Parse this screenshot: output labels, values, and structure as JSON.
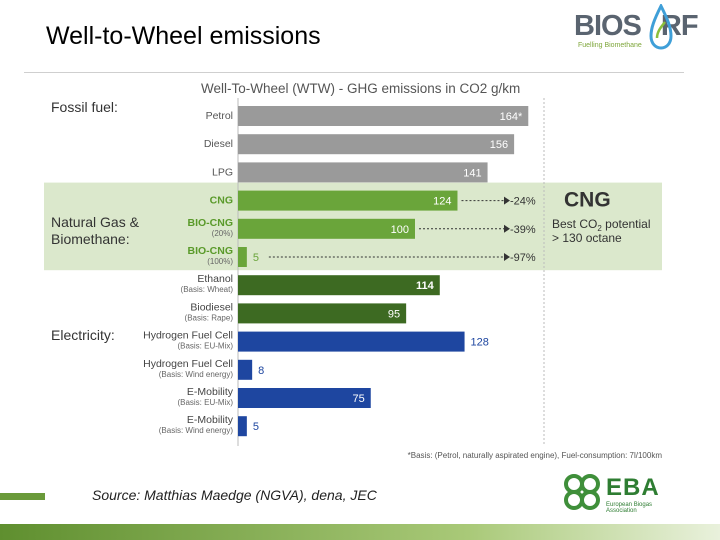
{
  "slide": {
    "title": "Well-to-Wheel emissions",
    "source": "Source: Matthias Maedge (NGVA), dena, JEC"
  },
  "logos": {
    "biosurf_a": "BIOS",
    "biosurf_b": "RF",
    "biosurf_sub": "Fuelling Biomethane",
    "eba": "EBA",
    "eba_sub": "European Biogas Association"
  },
  "colors": {
    "fossil": "#9a9a9a",
    "cng": "#6aa53a",
    "biofuel": "#3d6a22",
    "electric": "#1e46a0",
    "highlight_band": "#dbe8cc",
    "accent": "#6a9a3a"
  },
  "chart_data": {
    "type": "bar",
    "orientation": "horizontal",
    "title": "Well-To-Wheel (WTW) - GHG emissions in CO2 g/km",
    "groups": [
      {
        "name": "Fossil fuel:",
        "rows": [
          0,
          1,
          2
        ]
      },
      {
        "name": "Natural Gas & Biomethane:",
        "rows": [
          3,
          4,
          5
        ]
      },
      {
        "name": "Electricity:",
        "rows": [
          8,
          9,
          10,
          11
        ]
      }
    ],
    "rows": [
      {
        "label": "Petrol",
        "sub": "",
        "value": 164,
        "value_label": "164*",
        "color": "fossil",
        "label_color": "#555555",
        "inside": true
      },
      {
        "label": "Diesel",
        "sub": "",
        "value": 156,
        "value_label": "156",
        "color": "fossil",
        "label_color": "#555555",
        "inside": true
      },
      {
        "label": "LPG",
        "sub": "",
        "value": 141,
        "value_label": "141",
        "color": "fossil",
        "label_color": "#555555",
        "inside": true
      },
      {
        "label": "CNG",
        "sub": "",
        "value": 124,
        "value_label": "124",
        "color": "cng",
        "label_color": "#5a9a2a",
        "inside": true,
        "reduction": "-24%"
      },
      {
        "label": "BIO-CNG",
        "sub": "(20%)",
        "value": 100,
        "value_label": "100",
        "color": "cng",
        "label_color": "#5a9a2a",
        "inside": true,
        "reduction": "-39%"
      },
      {
        "label": "BIO-CNG",
        "sub": "(100%)",
        "value": 5,
        "value_label": "5",
        "color": "cng",
        "label_color": "#5a9a2a",
        "inside": false,
        "reduction": "-97%"
      },
      {
        "label": "Ethanol",
        "sub": "(Basis: Wheat)",
        "value": 114,
        "value_label": "114",
        "color": "biofuel",
        "label_color": "#444444",
        "inside": true
      },
      {
        "label": "Biodiesel",
        "sub": "(Basis: Rape)",
        "value": 95,
        "value_label": "95",
        "color": "biofuel",
        "label_color": "#444444",
        "inside": true
      },
      {
        "label": "Hydrogen Fuel Cell",
        "sub": "(Basis: EU-Mix)",
        "value": 128,
        "value_label": "128",
        "color": "electric",
        "label_color": "#444444",
        "inside": false
      },
      {
        "label": "Hydrogen Fuel Cell",
        "sub": "(Basis: Wind energy)",
        "value": 8,
        "value_label": "8",
        "color": "electric",
        "label_color": "#444444",
        "inside": false
      },
      {
        "label": "E-Mobility",
        "sub": "(Basis: EU-Mix)",
        "value": 75,
        "value_label": "75",
        "color": "electric",
        "label_color": "#444444",
        "inside": true
      },
      {
        "label": "E-Mobility",
        "sub": "(Basis: Wind energy)",
        "value": 5,
        "value_label": "5",
        "color": "electric",
        "label_color": "#444444",
        "inside": false
      }
    ],
    "callout": {
      "heading": "CNG",
      "line1": "Best CO",
      "line1_sub": "2",
      "line1_end": " potential",
      "line2": "> 130 octane"
    },
    "footnote": "*Basis: (Petrol, naturally aspirated engine), Fuel-consumption: 7l/100km",
    "grid": false
  }
}
